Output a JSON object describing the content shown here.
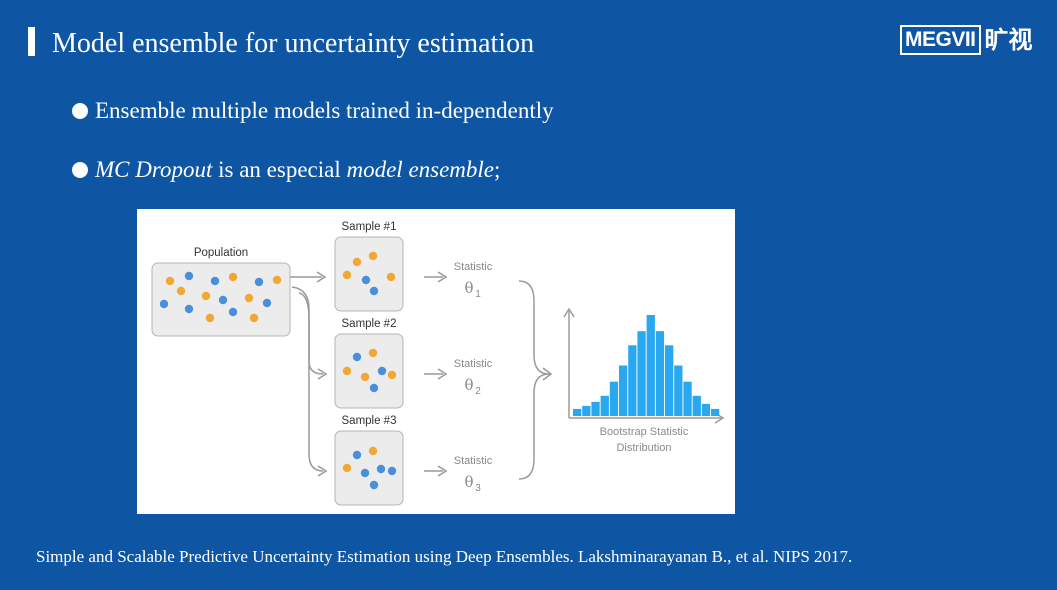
{
  "slide": {
    "title": "Model ensemble for uncertainty estimation",
    "logo": {
      "text": "MEGVII",
      "chinese": "旷视"
    },
    "bullets": [
      {
        "text": "Ensemble multiple models trained in-dependently"
      },
      {
        "italic1": "MC Dropout",
        "mid": " is an especial ",
        "italic2": "model ensemble",
        "end": ";"
      }
    ],
    "citation": "Simple and Scalable Predictive Uncertainty Estimation using Deep Ensembles. Lakshminarayanan B., et al. NIPS 2017."
  },
  "diagram": {
    "population_label": "Population",
    "samples": [
      {
        "label": "Sample #1",
        "statistic": "Statistic",
        "theta": "θ",
        "subscript": "1"
      },
      {
        "label": "Sample #2",
        "statistic": "Statistic",
        "theta": "θ",
        "subscript": "2"
      },
      {
        "label": "Sample #3",
        "statistic": "Statistic",
        "theta": "θ",
        "subscript": "3"
      }
    ],
    "distribution_label_line1": "Bootstrap Statistic",
    "distribution_label_line2": "Distribution",
    "histogram_relative_heights": [
      0.07,
      0.1,
      0.14,
      0.2,
      0.34,
      0.5,
      0.7,
      0.84,
      1.0,
      0.84,
      0.7,
      0.5,
      0.34,
      0.2,
      0.12,
      0.07
    ],
    "colors": {
      "orange": "#f0a733",
      "blue": "#4a8fd9",
      "bar": "#29a8f0",
      "gray": "#9a9a9a"
    }
  }
}
